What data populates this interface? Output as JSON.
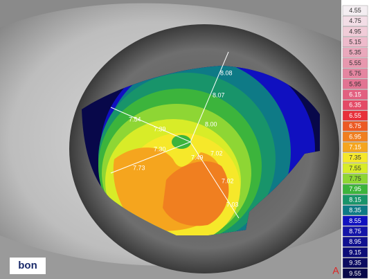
{
  "scale": {
    "steps": [
      {
        "label": "4.55",
        "color": "#f4eef2"
      },
      {
        "label": "4.75",
        "color": "#f3dde6"
      },
      {
        "label": "4.95",
        "color": "#f1ccd8"
      },
      {
        "label": "5.15",
        "color": "#eebacb"
      },
      {
        "label": "5.35",
        "color": "#eaa8bc"
      },
      {
        "label": "5.55",
        "color": "#e897ae"
      },
      {
        "label": "5.75",
        "color": "#e585a0"
      },
      {
        "label": "5.95",
        "color": "#e27392"
      },
      {
        "label": "6.15",
        "color": "#e26080"
      },
      {
        "label": "6.35",
        "color": "#e44a66"
      },
      {
        "label": "6.55",
        "color": "#e8303a"
      },
      {
        "label": "6.75",
        "color": "#ec5a24"
      },
      {
        "label": "6.95",
        "color": "#f07f20"
      },
      {
        "label": "7.15",
        "color": "#f5a51e"
      },
      {
        "label": "7.35",
        "color": "#f6e82a"
      },
      {
        "label": "7.55",
        "color": "#d8ec28"
      },
      {
        "label": "7.75",
        "color": "#8ed634"
      },
      {
        "label": "7.95",
        "color": "#3cb43c"
      },
      {
        "label": "8.15",
        "color": "#18946a"
      },
      {
        "label": "8.35",
        "color": "#0e7a86"
      },
      {
        "label": "8.55",
        "color": "#1010c0"
      },
      {
        "label": "8.75",
        "color": "#1414a8"
      },
      {
        "label": "8.95",
        "color": "#101090"
      },
      {
        "label": "9.15",
        "color": "#0c0c78"
      },
      {
        "label": "9.35",
        "color": "#0a0a60"
      },
      {
        "label": "9.55",
        "color": "#08084a"
      }
    ]
  },
  "map_labels": [
    "8.08",
    "8.07",
    "8.00",
    "7.54",
    "7.39",
    "7.30",
    "7.73",
    "7.02",
    "7.49",
    "7.02",
    "7.03"
  ],
  "logo": "bon",
  "corner_mark": "A"
}
